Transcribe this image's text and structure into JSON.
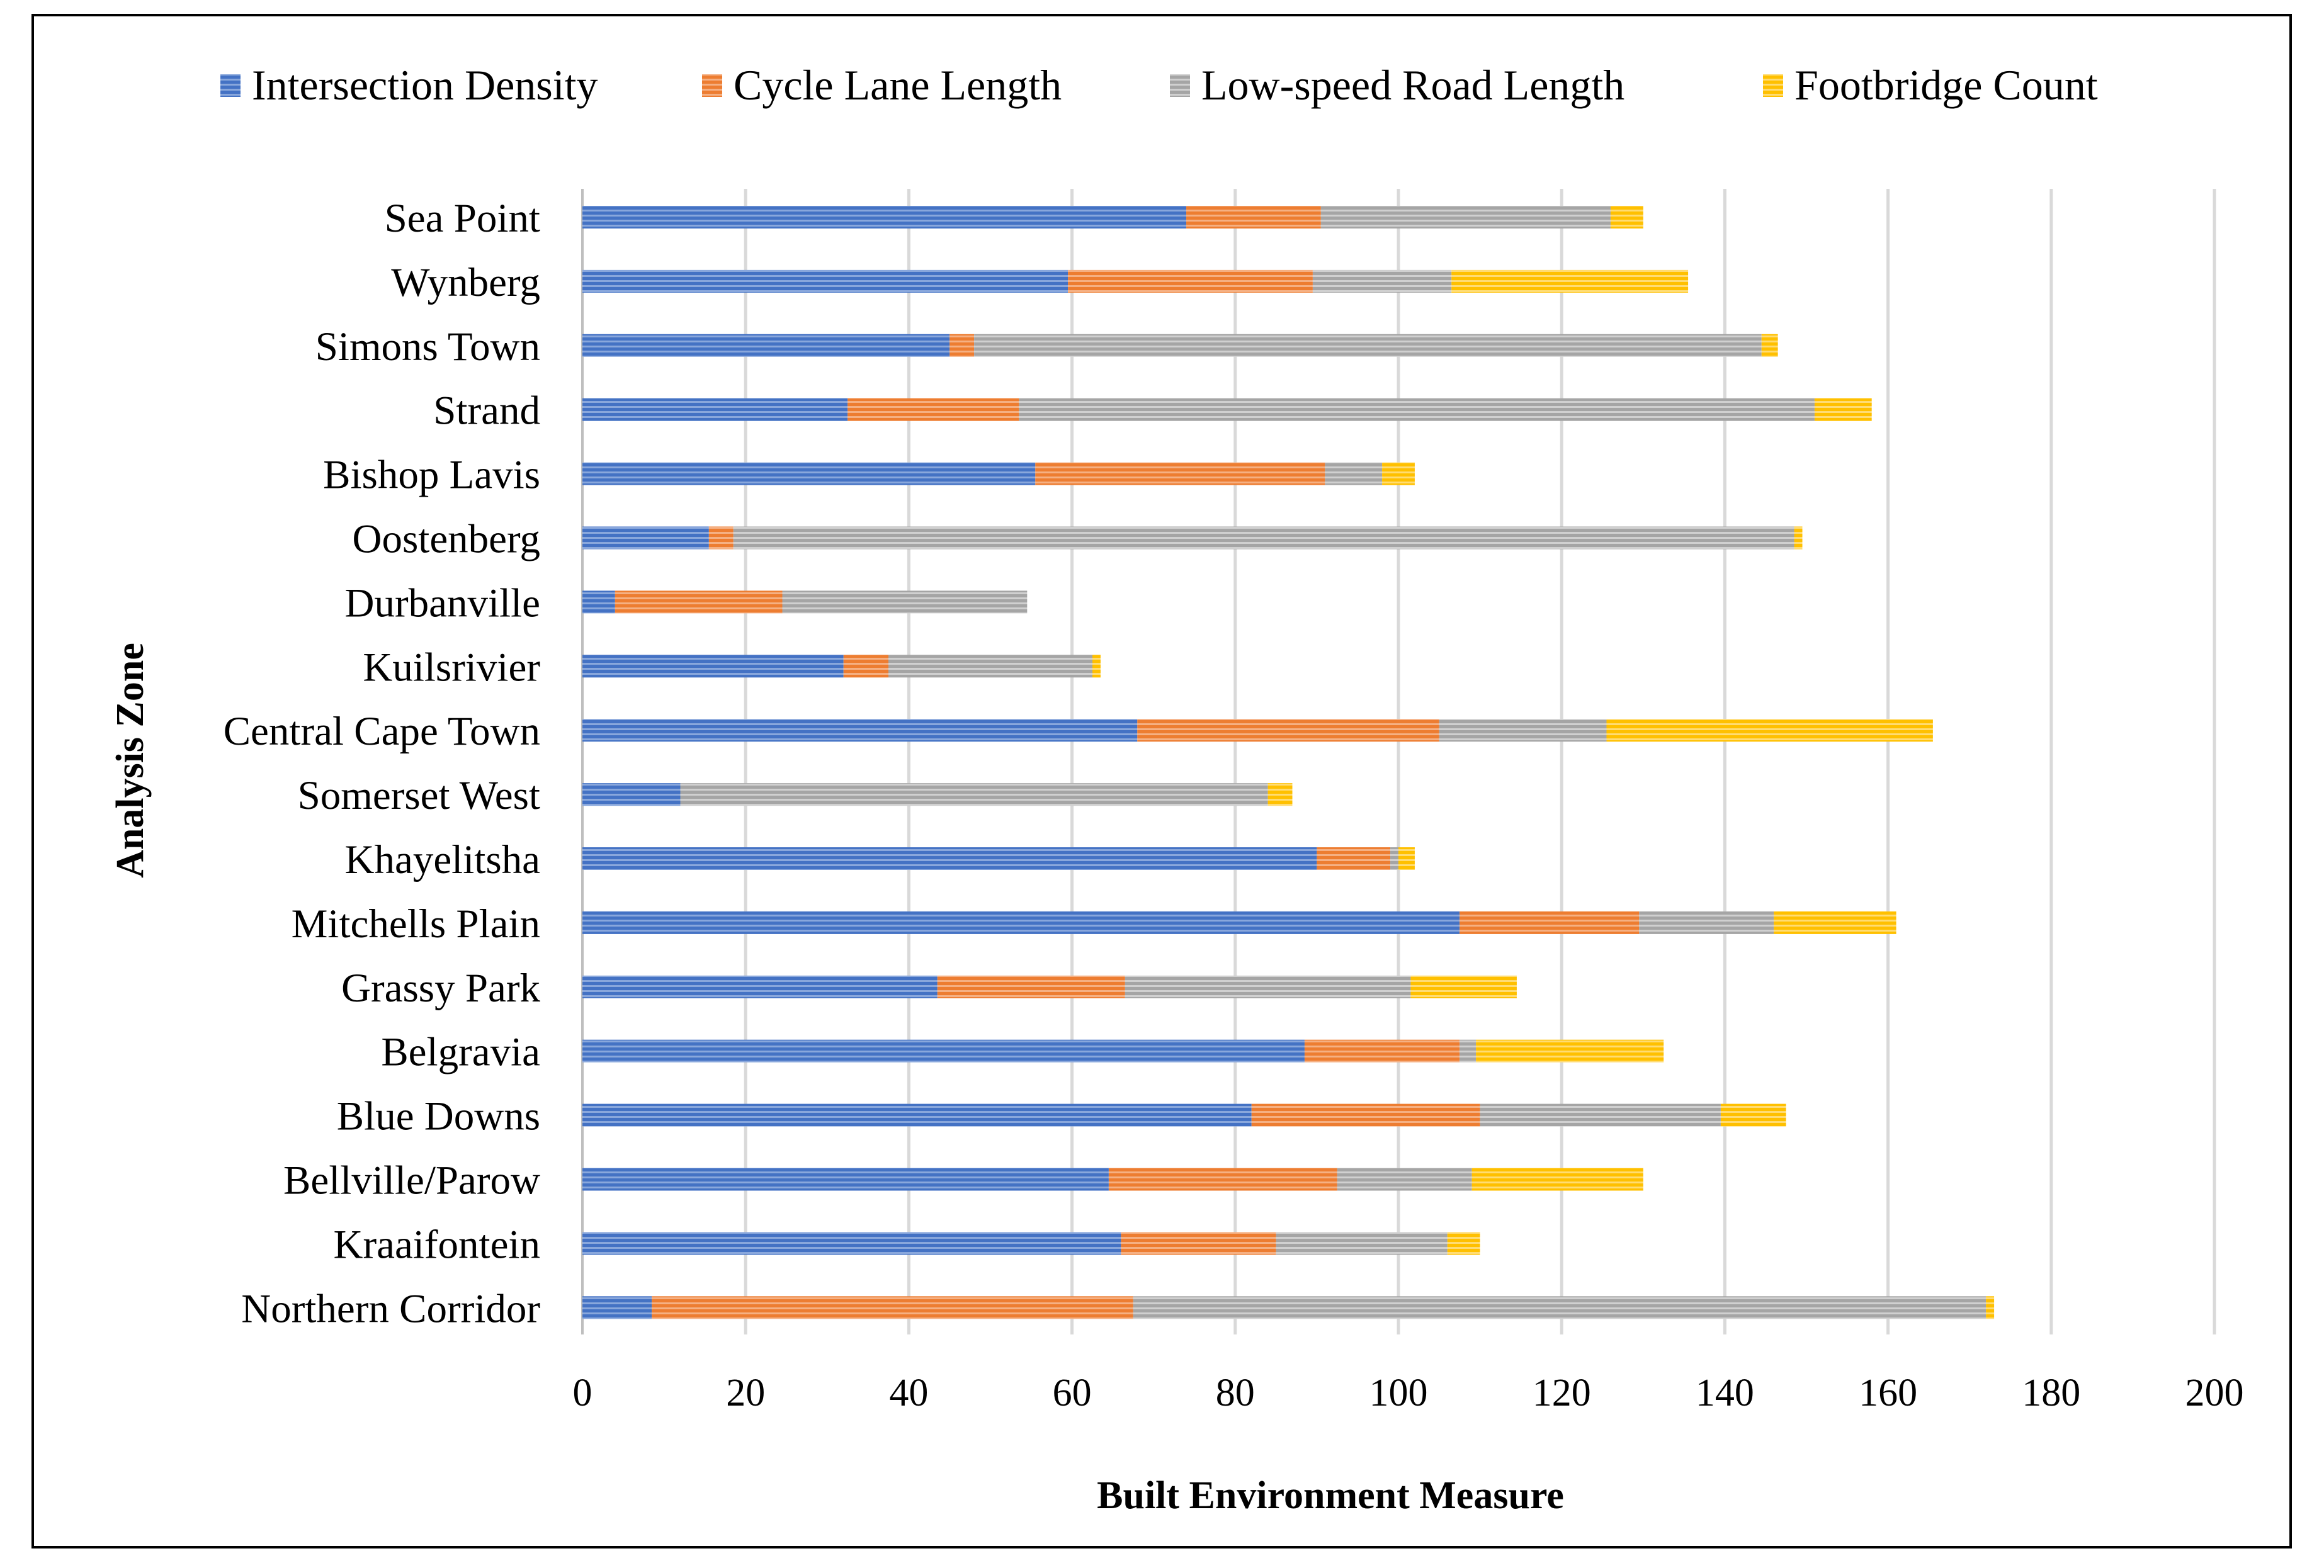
{
  "chart_data": {
    "type": "bar",
    "orientation": "horizontal",
    "stacked": true,
    "title": "",
    "xlabel": "Built Environment  Measure",
    "ylabel": "Analysis Zone",
    "xlim": [
      0,
      200
    ],
    "xticks": [
      "0",
      "20",
      "40",
      "60",
      "80",
      "100",
      "120",
      "140",
      "160",
      "180",
      "200"
    ],
    "grid": "vertical",
    "legend_position": "top",
    "categories": [
      "Sea Point",
      "Wynberg",
      "Simons Town",
      "Strand",
      "Bishop Lavis",
      "Oostenberg",
      "Durbanville",
      "Kuilsrivier",
      "Central Cape Town",
      "Somerset West",
      "Khayelitsha",
      "Mitchells Plain",
      "Grassy Park",
      "Belgravia",
      "Blue Downs",
      "Bellville/Parow",
      "Kraaifontein",
      "Northern Corridor"
    ],
    "series": [
      {
        "name": "Intersection Density",
        "color": "#4472C4",
        "values": [
          74,
          59.5,
          45,
          32.5,
          55.5,
          15.5,
          4,
          32,
          68,
          12,
          90,
          107.5,
          43.5,
          88.5,
          82,
          64.5,
          66,
          8.5
        ]
      },
      {
        "name": "Cycle Lane Length",
        "color": "#ED7D31",
        "values": [
          16.5,
          30,
          3,
          21,
          35.5,
          3,
          20.5,
          5.5,
          37,
          0,
          9,
          22,
          23,
          19,
          28,
          28,
          19,
          59
        ]
      },
      {
        "name": "Low-speed Road Length",
        "color": "#A5A5A5",
        "values": [
          35.5,
          17,
          96.5,
          97.5,
          7,
          130,
          30,
          25,
          20.5,
          72,
          1,
          16.5,
          35,
          2,
          29.5,
          16.5,
          21,
          104.5
        ]
      },
      {
        "name": "Footbridge Count",
        "color": "#FFC000",
        "values": [
          4,
          29,
          2,
          7,
          4,
          1,
          0,
          1,
          40,
          3,
          2,
          15,
          13,
          23,
          8,
          21,
          4,
          1
        ]
      }
    ]
  }
}
